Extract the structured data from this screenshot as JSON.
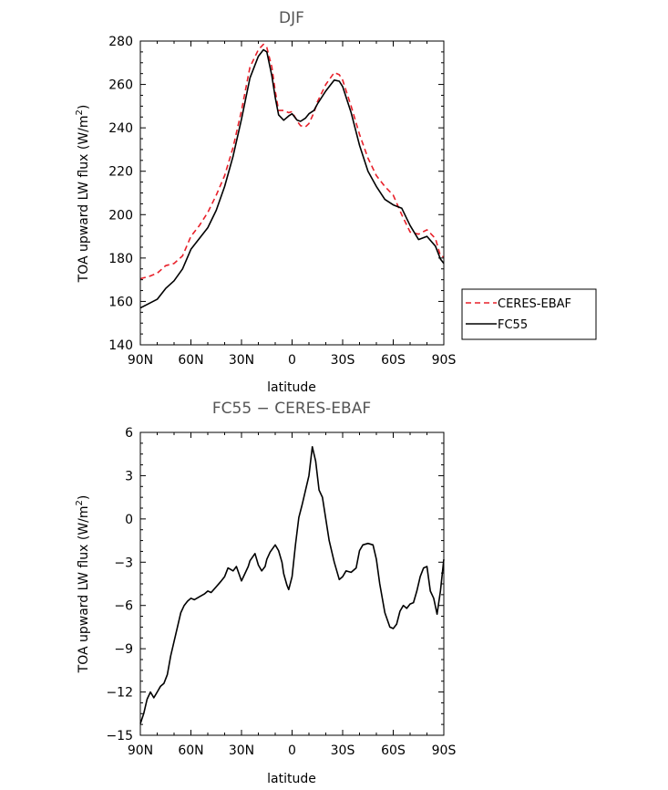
{
  "chart_data": [
    {
      "type": "line",
      "title": "DJF",
      "xlabel": "latitude",
      "ylabel": "TOA upward LW flux (W/m",
      "ylabel_sup": "2",
      "ylabel_end": ")",
      "xlim": [
        90,
        -90
      ],
      "ylim": [
        140,
        280
      ],
      "xticks": [
        90,
        60,
        30,
        0,
        -30,
        -60,
        -90
      ],
      "xtick_labels": [
        "90N",
        "60N",
        "30N",
        "0",
        "30S",
        "60S",
        "90S"
      ],
      "yticks": [
        140,
        160,
        180,
        200,
        220,
        240,
        260,
        280
      ],
      "ytick_labels": [
        "140",
        "160",
        "180",
        "200",
        "220",
        "240",
        "260",
        "280"
      ],
      "legend": "right",
      "grid": false,
      "series": [
        {
          "name": "CERES-EBAF",
          "color": "#e8202a",
          "dash": "dashed",
          "x": [
            90,
            85,
            80,
            75,
            70,
            65,
            60,
            55,
            50,
            45,
            40,
            35,
            30,
            25,
            20,
            17,
            15,
            12,
            10,
            8,
            5,
            2,
            0,
            -3,
            -5,
            -8,
            -10,
            -13,
            -15,
            -20,
            -25,
            -28,
            -30,
            -35,
            -40,
            -45,
            -50,
            -55,
            -60,
            -65,
            -70,
            -75,
            -80,
            -85,
            -88,
            -90
          ],
          "y": [
            170.5,
            171.5,
            173,
            176.5,
            177.5,
            181,
            190,
            195,
            201,
            209,
            218,
            231,
            248,
            268,
            276,
            278.5,
            277,
            268,
            257,
            248,
            248,
            247,
            247.5,
            243,
            241,
            240.5,
            242,
            247,
            252,
            260,
            265.5,
            264.5,
            262,
            250,
            237,
            226,
            218,
            213,
            209,
            200,
            192,
            191,
            193,
            189,
            181,
            180.5
          ]
        },
        {
          "name": "FC55",
          "color": "#000000",
          "dash": "solid",
          "x": [
            90,
            85,
            80,
            75,
            70,
            65,
            60,
            55,
            50,
            45,
            40,
            35,
            30,
            25,
            20,
            17,
            15,
            12,
            10,
            8,
            5,
            2,
            0,
            -3,
            -5,
            -8,
            -10,
            -13,
            -15,
            -20,
            -25,
            -28,
            -30,
            -35,
            -40,
            -45,
            -50,
            -55,
            -60,
            -65,
            -70,
            -75,
            -80,
            -85,
            -88,
            -90
          ],
          "y": [
            157,
            159,
            161,
            166,
            169.5,
            175,
            184,
            189,
            194,
            202,
            213,
            227,
            244,
            263,
            273,
            276,
            275,
            264,
            254,
            246,
            243.5,
            245.5,
            246.5,
            243.5,
            243,
            244.5,
            246.5,
            248,
            251,
            257,
            262,
            261.5,
            259,
            247,
            232,
            220,
            213,
            207,
            204.5,
            203,
            195,
            188.5,
            190,
            185.5,
            179.5,
            177.5
          ]
        }
      ]
    },
    {
      "type": "line",
      "title": "FC55 − CERES-EBAF",
      "xlabel": "latitude",
      "ylabel": "TOA upward LW flux (W/m",
      "ylabel_sup": "2",
      "ylabel_end": ")",
      "xlim": [
        90,
        -90
      ],
      "ylim": [
        -15,
        6
      ],
      "xticks": [
        90,
        60,
        30,
        0,
        -30,
        -60,
        -90
      ],
      "xtick_labels": [
        "90N",
        "60N",
        "30N",
        "0",
        "30S",
        "60S",
        "90S"
      ],
      "yticks": [
        -15,
        -12,
        -9,
        -6,
        -3,
        0,
        3,
        6
      ],
      "ytick_labels": [
        "−15",
        "−12",
        "−9",
        "−6",
        "−3",
        "0",
        "3",
        "6"
      ],
      "grid": false,
      "series": [
        {
          "color": "#000000",
          "dash": "solid",
          "x": [
            90,
            88,
            86,
            84,
            82,
            80,
            78,
            76,
            74,
            72,
            70,
            68,
            66,
            64,
            62,
            60,
            58,
            55,
            52,
            50,
            48,
            45,
            42,
            40,
            38,
            35,
            33,
            30,
            28,
            26,
            25,
            22,
            20,
            18,
            16,
            15,
            13,
            10,
            8,
            6,
            5,
            3,
            2,
            0,
            -2,
            -4,
            -6,
            -8,
            -10,
            -12,
            -14,
            -16,
            -18,
            -20,
            -22,
            -25,
            -28,
            -30,
            -32,
            -35,
            -38,
            -40,
            -42,
            -45,
            -48,
            -50,
            -52,
            -55,
            -58,
            -60,
            -62,
            -64,
            -66,
            -68,
            -70,
            -72,
            -74,
            -76,
            -78,
            -80,
            -82,
            -84,
            -86,
            -88,
            -90
          ],
          "y": [
            -14.2,
            -13.5,
            -12.5,
            -12.0,
            -12.4,
            -12.0,
            -11.6,
            -11.4,
            -10.8,
            -9.5,
            -8.5,
            -7.5,
            -6.5,
            -6.0,
            -5.7,
            -5.5,
            -5.6,
            -5.4,
            -5.2,
            -5.0,
            -5.1,
            -4.7,
            -4.3,
            -4.0,
            -3.4,
            -3.6,
            -3.3,
            -4.3,
            -3.8,
            -3.3,
            -2.9,
            -2.4,
            -3.2,
            -3.6,
            -3.3,
            -2.8,
            -2.3,
            -1.8,
            -2.2,
            -3.0,
            -3.8,
            -4.6,
            -4.9,
            -4.0,
            -1.8,
            0.1,
            1.0,
            2.0,
            3.0,
            5.0,
            4.0,
            2.0,
            1.5,
            0.0,
            -1.5,
            -3.0,
            -4.2,
            -4.0,
            -3.6,
            -3.7,
            -3.4,
            -2.2,
            -1.8,
            -1.7,
            -1.8,
            -2.8,
            -4.5,
            -6.5,
            -7.5,
            -7.6,
            -7.3,
            -6.4,
            -6.0,
            -6.2,
            -5.9,
            -5.8,
            -5.0,
            -4.0,
            -3.4,
            -3.3,
            -5.0,
            -5.5,
            -6.6,
            -5.0,
            -2.8
          ]
        }
      ]
    }
  ]
}
